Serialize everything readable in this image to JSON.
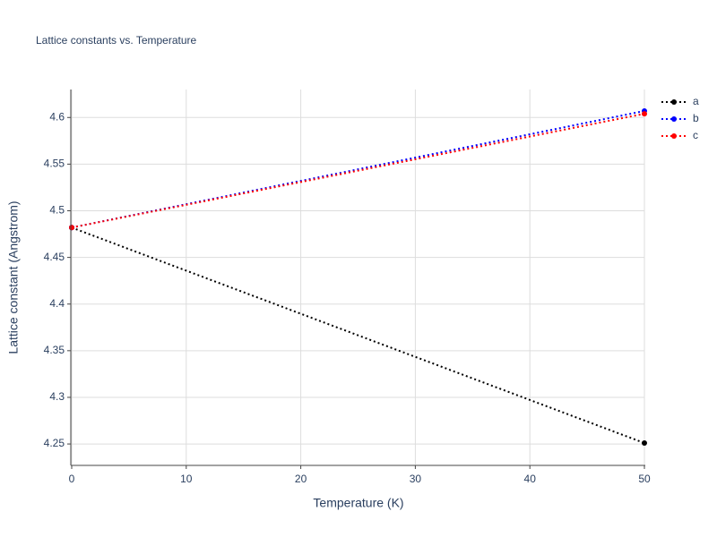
{
  "chart_data": {
    "type": "line",
    "title": "Lattice constants vs. Temperature",
    "x_label": "Temperature (K)",
    "y_label": "Lattice constant (Angstrom)",
    "x": [
      0,
      50
    ],
    "series": [
      {
        "name": "a",
        "color": "#000000",
        "values": [
          4.482,
          4.251
        ]
      },
      {
        "name": "b",
        "color": "#0000ff",
        "values": [
          4.482,
          4.607
        ]
      },
      {
        "name": "c",
        "color": "#ff0000",
        "values": [
          4.482,
          4.604
        ]
      }
    ],
    "xlim": [
      0,
      50
    ],
    "xticks": [
      0,
      10,
      20,
      30,
      40,
      50
    ],
    "ylim": [
      4.228,
      4.63
    ],
    "yticks": [
      4.25,
      4.3,
      4.35,
      4.4,
      4.45,
      4.5,
      4.55,
      4.6
    ],
    "grid": true,
    "line_style": "dotted",
    "legend": "right"
  }
}
